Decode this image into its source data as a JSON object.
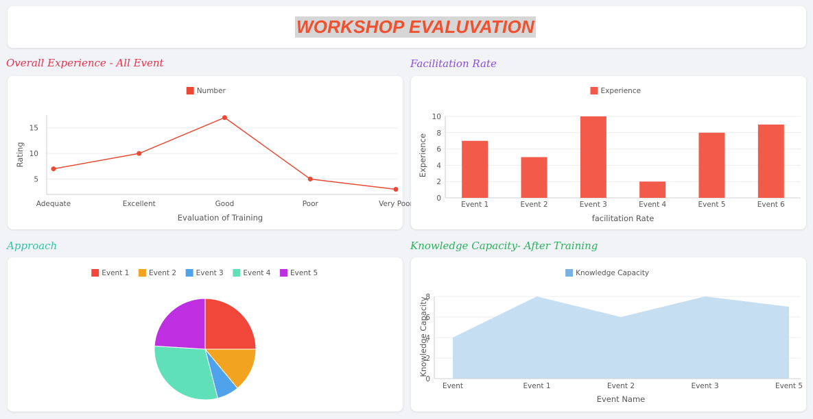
{
  "page": {
    "title": "WORKSHOP EVALUVATION",
    "title_color": "#f0502d"
  },
  "sections": [
    {
      "title": "Overall Experience - All Event",
      "color": "#e8334d"
    },
    {
      "title": "Facilitation Rate",
      "color": "#8a4de0"
    },
    {
      "title": "Approach",
      "color": "#2fc3a0"
    },
    {
      "title": "Knowledge Capacity- After Training",
      "color": "#28b35a"
    }
  ],
  "chart_data": [
    {
      "type": "line",
      "categories": [
        "Adequate",
        "Excellent",
        "Good",
        "Poor",
        "Very Poor"
      ],
      "series": [
        {
          "name": "Number",
          "values": [
            7,
            10,
            17,
            5,
            3
          ],
          "color": "#ea4a35"
        }
      ],
      "xlabel": "Evaluation of Training",
      "ylabel": "Rating",
      "yticks": [
        5,
        10,
        15
      ],
      "ylim": [
        2,
        17.5
      ],
      "grid": true,
      "legend": "top-center"
    },
    {
      "type": "bar",
      "categories": [
        "Event 1",
        "Event 2",
        "Event 3",
        "Event 4",
        "Event 5",
        "Event 6"
      ],
      "series": [
        {
          "name": "Experience",
          "values": [
            7,
            5,
            10,
            2,
            8,
            9
          ],
          "color": "#f25a4a"
        }
      ],
      "xlabel": "facilitation Rate",
      "ylabel": "Experience",
      "yticks": [
        0,
        2,
        4,
        6,
        8,
        10
      ],
      "ylim": [
        0,
        10
      ],
      "grid": true,
      "legend": "top-center"
    },
    {
      "type": "pie",
      "series": [
        {
          "name": "Event 1",
          "value": 25,
          "color": "#f0473a"
        },
        {
          "name": "Event 2",
          "value": 14,
          "color": "#f2a31f"
        },
        {
          "name": "Event 3",
          "value": 7,
          "color": "#4fa3ea"
        },
        {
          "name": "Event 4",
          "value": 30,
          "color": "#5fe0b9"
        },
        {
          "name": "Event 5",
          "value": 24,
          "color": "#bd2fe0"
        }
      ],
      "legend": "top-center"
    },
    {
      "type": "area",
      "categories": [
        "Event",
        "Event 1",
        "Event 2",
        "Event 3",
        "Event 5"
      ],
      "series": [
        {
          "name": "Knowledge Capacity",
          "values": [
            4,
            8,
            6,
            8,
            7
          ],
          "color": "#c6def2",
          "legend_color": "#79b2e2"
        }
      ],
      "xlabel": "Event Name",
      "ylabel": "Knowledge Capacity",
      "yticks": [
        0,
        2,
        4,
        6,
        8
      ],
      "ylim": [
        0,
        8
      ],
      "grid": true,
      "legend": "top-center"
    }
  ]
}
